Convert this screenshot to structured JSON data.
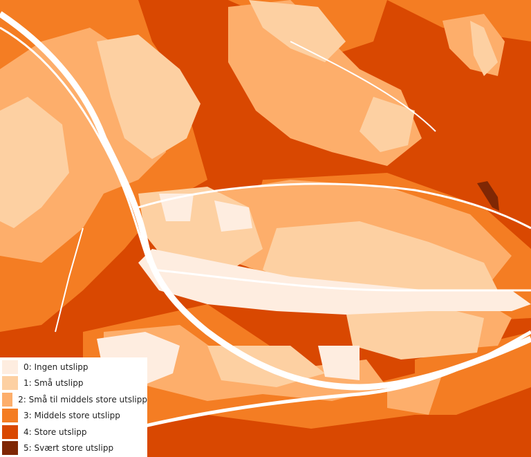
{
  "legend": {
    "items": [
      {
        "label": "0: Ingen utslipp",
        "color": "#feede0"
      },
      {
        "label": "1: Små utslipp",
        "color": "#fdd0a2"
      },
      {
        "label": "2: Små til middels store utslipp",
        "color": "#fdae6b"
      },
      {
        "label": "3: Middels store utslipp",
        "color": "#f47d23"
      },
      {
        "label": "4: Store utslipp",
        "color": "#d94801"
      },
      {
        "label": "5: Svært store utslipp",
        "color": "#7f2704"
      }
    ]
  }
}
